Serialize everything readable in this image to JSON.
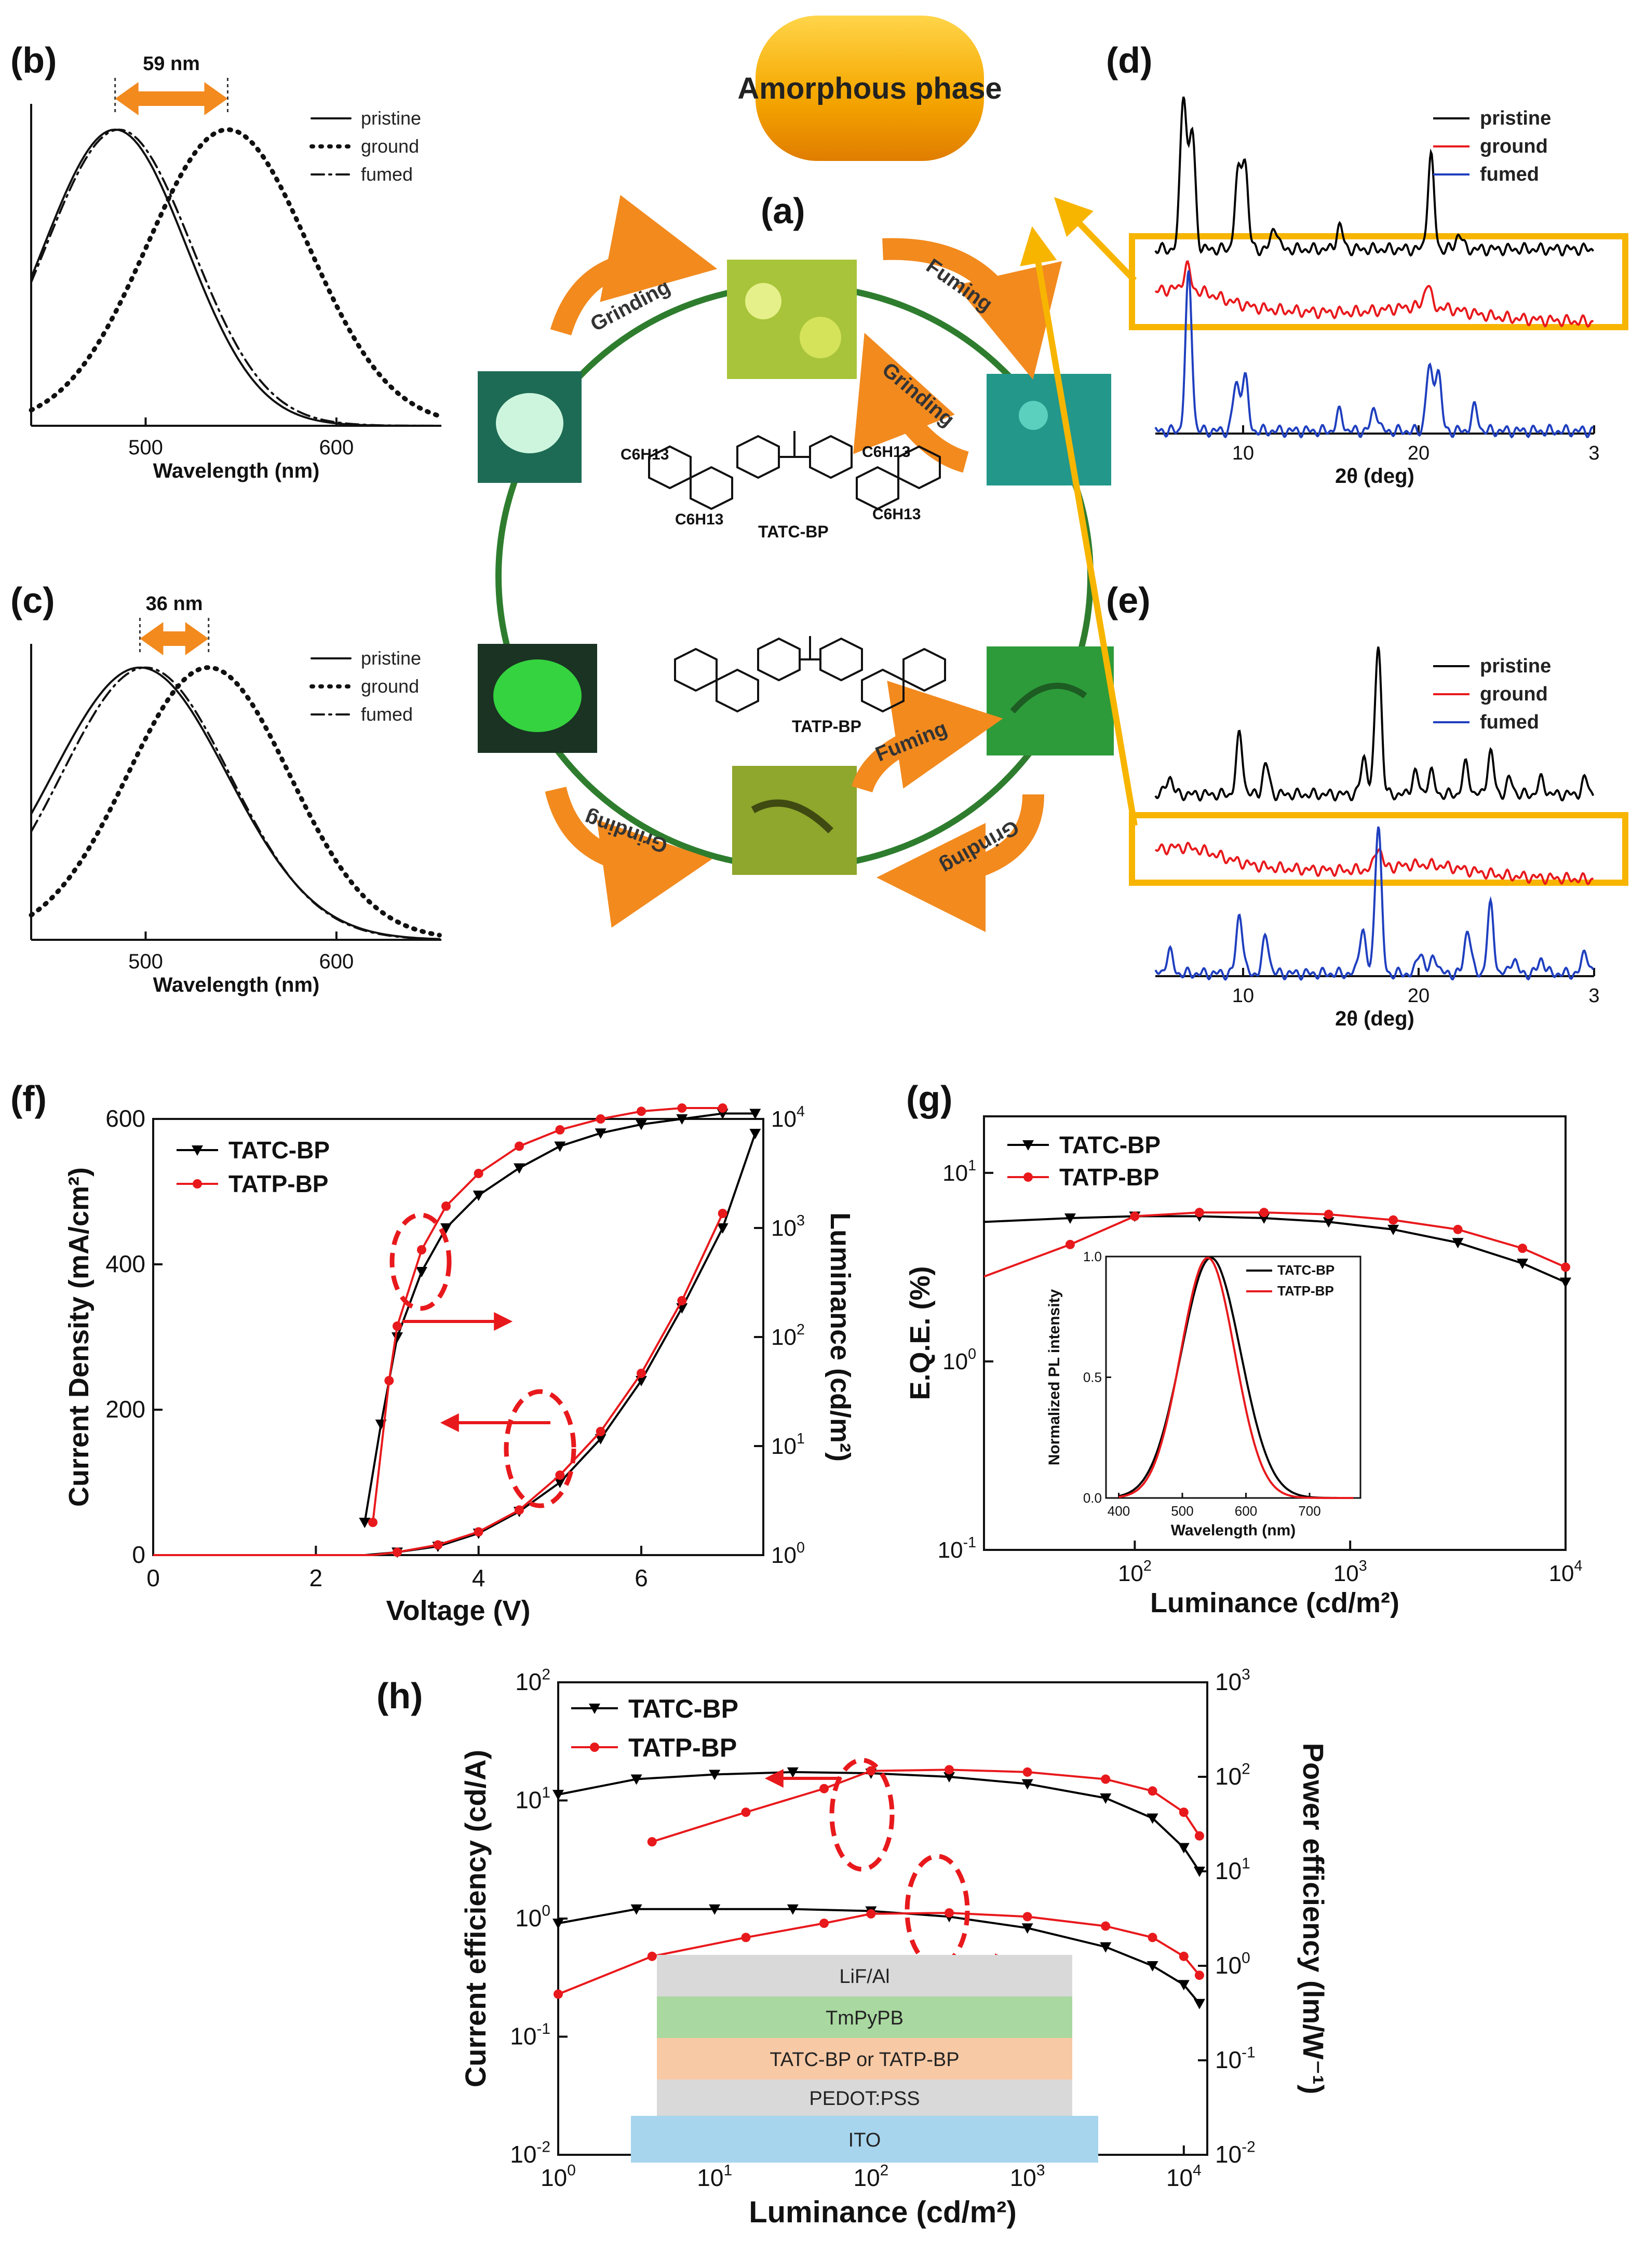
{
  "panels": {
    "b": "(b)",
    "c": "(c)",
    "d": "(d)",
    "e": "(e)",
    "f": "(f)",
    "g": "(g)",
    "h": "(h)",
    "a": "(a)"
  },
  "scheme": {
    "amorphous_label": "Amorphous phase",
    "arrows": [
      "Grinding",
      "Fuming",
      "Grinding",
      "Grinding",
      "Fuming",
      "Grinding"
    ],
    "mol_top": "TATC-BP",
    "mol_bottom": "TATP-BP",
    "sub_top_1": "C6H13",
    "sub_top_2": "C6H13",
    "sub_top_3": "C6H13",
    "sub_top_4": "C6H13"
  },
  "colors": {
    "black": "#000000",
    "red": "#e8191c",
    "blue": "#1f3fbf",
    "orange": "#f28a1e",
    "yellow": "#f7b500",
    "green": "#2e8b2e"
  },
  "chart_data": [
    {
      "id": "b",
      "type": "line",
      "title": "",
      "xlabel": "Wavelength (nm)",
      "ylabel": "",
      "xlim": [
        440,
        655
      ],
      "xticks": [
        500,
        600
      ],
      "annotation": "59 nm",
      "legend": [
        "pristine",
        "ground",
        "fumed"
      ],
      "series": [
        {
          "name": "pristine",
          "style": "solid",
          "peak": 484,
          "fwhm": 88
        },
        {
          "name": "ground",
          "style": "dotted",
          "peak": 543,
          "fwhm": 100
        },
        {
          "name": "fumed",
          "style": "dashdot",
          "peak": 486,
          "fwhm": 90
        }
      ]
    },
    {
      "id": "c",
      "type": "line",
      "title": "",
      "xlabel": "Wavelength (nm)",
      "ylabel": "",
      "xlim": [
        440,
        655
      ],
      "xticks": [
        500,
        600
      ],
      "annotation": "36 nm",
      "legend": [
        "pristine",
        "ground",
        "fumed"
      ],
      "series": [
        {
          "name": "pristine",
          "style": "solid",
          "peak": 497,
          "fwhm": 108
        },
        {
          "name": "ground",
          "style": "dotted",
          "peak": 533,
          "fwhm": 100
        },
        {
          "name": "fumed",
          "style": "dashdot",
          "peak": 500,
          "fwhm": 104
        }
      ]
    },
    {
      "id": "d",
      "type": "line",
      "title": "",
      "xlabel": "2θ (deg)",
      "ylabel": "",
      "xlim": [
        5,
        30
      ],
      "xticks": [
        10,
        20,
        "3"
      ],
      "legend": [
        "pristine",
        "ground",
        "fumed"
      ],
      "series": [
        {
          "name": "pristine",
          "peaks": [
            [
              6.6,
              1.0
            ],
            [
              7.1,
              0.75
            ],
            [
              9.7,
              0.45
            ],
            [
              10.1,
              0.55
            ],
            [
              11.8,
              0.15
            ],
            [
              15.5,
              0.15
            ],
            [
              20.7,
              0.6
            ],
            [
              22.3,
              0.1
            ]
          ]
        },
        {
          "name": "ground",
          "peaks": [
            [
              6.8,
              0.15
            ],
            [
              20.5,
              0.15
            ]
          ]
        },
        {
          "name": "fumed",
          "peaks": [
            [
              6.9,
              1.0
            ],
            [
              9.6,
              0.3
            ],
            [
              10.1,
              0.35
            ],
            [
              15.5,
              0.12
            ],
            [
              17.5,
              0.15
            ],
            [
              20.6,
              0.4
            ],
            [
              21.1,
              0.4
            ],
            [
              23.2,
              0.15
            ]
          ]
        }
      ]
    },
    {
      "id": "e",
      "type": "line",
      "title": "",
      "xlabel": "2θ (deg)",
      "ylabel": "",
      "xlim": [
        5,
        30
      ],
      "xticks": [
        10,
        20,
        "3"
      ],
      "legend": [
        "pristine",
        "ground",
        "fumed"
      ],
      "series": [
        {
          "name": "pristine",
          "peaks": [
            [
              5.8,
              0.12
            ],
            [
              9.8,
              0.4
            ],
            [
              11.3,
              0.2
            ],
            [
              16.9,
              0.25
            ],
            [
              17.7,
              1.0
            ],
            [
              19.8,
              0.15
            ],
            [
              20.7,
              0.15
            ],
            [
              22.7,
              0.2
            ],
            [
              24.1,
              0.28
            ],
            [
              25.2,
              0.1
            ],
            [
              27.0,
              0.1
            ],
            [
              29.5,
              0.1
            ]
          ]
        },
        {
          "name": "ground",
          "peaks": [
            [
              17.7,
              0.15
            ]
          ]
        },
        {
          "name": "fumed",
          "peaks": [
            [
              5.8,
              0.15
            ],
            [
              9.8,
              0.4
            ],
            [
              11.3,
              0.25
            ],
            [
              16.8,
              0.3
            ],
            [
              17.7,
              1.0
            ],
            [
              20.1,
              0.15
            ],
            [
              20.9,
              0.12
            ],
            [
              22.8,
              0.3
            ],
            [
              24.1,
              0.45
            ],
            [
              25.4,
              0.1
            ],
            [
              27.0,
              0.1
            ],
            [
              29.5,
              0.15
            ]
          ]
        }
      ]
    },
    {
      "id": "f",
      "type": "line",
      "title": "",
      "xlabel": "Voltage (V)",
      "ylabel": "Current Density (mA/cm²)",
      "ylabel_right": "Luminance (cd/m²)",
      "xlim": [
        0,
        7.5
      ],
      "ylim": [
        0,
        600
      ],
      "ylim_right_log": [
        0,
        4
      ],
      "xticks": [
        0,
        2,
        4,
        6
      ],
      "yticks": [
        0,
        200,
        400,
        600
      ],
      "yticks_right": [
        "10^0",
        "10^1",
        "10^2",
        "10^3",
        "10^4"
      ],
      "legend": [
        "TATC-BP",
        "TATP-BP"
      ],
      "series": [
        {
          "name": "TATC-BP",
          "axis": "left",
          "x": [
            0,
            1,
            2,
            2.6,
            3.0,
            3.5,
            4.0,
            4.5,
            5.0,
            5.5,
            6.0,
            6.5,
            7.0,
            7.4
          ],
          "y": [
            0,
            0,
            0,
            0,
            4,
            12,
            30,
            60,
            100,
            160,
            240,
            340,
            450,
            580
          ]
        },
        {
          "name": "TATP-BP",
          "axis": "left",
          "x": [
            0,
            1,
            2,
            2.7,
            3.0,
            3.5,
            4.0,
            4.5,
            5.0,
            5.5,
            6.0,
            6.5,
            7.0
          ],
          "y": [
            0,
            0,
            0,
            0,
            4,
            14,
            32,
            62,
            110,
            170,
            250,
            350,
            470
          ]
        },
        {
          "name": "TATC-BP",
          "axis": "right",
          "x": [
            2.6,
            2.8,
            3.0,
            3.3,
            3.6,
            4.0,
            4.5,
            5.0,
            5.5,
            6.0,
            6.5,
            7.0,
            7.4
          ],
          "y": [
            0.3,
            1.2,
            2.0,
            2.6,
            3.0,
            3.3,
            3.55,
            3.75,
            3.87,
            3.95,
            4.0,
            4.05,
            4.05
          ]
        },
        {
          "name": "TATP-BP",
          "axis": "right",
          "x": [
            2.7,
            2.9,
            3.0,
            3.3,
            3.6,
            4.0,
            4.5,
            5.0,
            5.5,
            6.0,
            6.5,
            7.0
          ],
          "y": [
            0.3,
            1.6,
            2.1,
            2.8,
            3.2,
            3.5,
            3.75,
            3.9,
            4.0,
            4.07,
            4.1,
            4.1
          ]
        }
      ]
    },
    {
      "id": "g",
      "type": "line",
      "title": "",
      "xlabel": "Luminance (cd/m²)",
      "ylabel": "E.Q.E. (%)",
      "xlim_log": [
        1.3,
        4
      ],
      "ylim_log": [
        -1,
        1.3
      ],
      "xticks": [
        "10^2",
        "10^3",
        "10^4"
      ],
      "yticks": [
        "10^-1",
        "10^0",
        "10^1"
      ],
      "legend": [
        "TATC-BP",
        "TATP-BP"
      ],
      "series": [
        {
          "name": "TATC-BP",
          "logx": [
            1.3,
            1.7,
            2.0,
            2.3,
            2.6,
            2.9,
            3.2,
            3.5,
            3.8,
            4.0
          ],
          "logy": [
            0.74,
            0.76,
            0.77,
            0.77,
            0.76,
            0.74,
            0.7,
            0.63,
            0.52,
            0.42
          ]
        },
        {
          "name": "TATP-BP",
          "logx": [
            1.3,
            1.7,
            2.0,
            2.3,
            2.6,
            2.9,
            3.2,
            3.5,
            3.8,
            4.0
          ],
          "logy": [
            0.45,
            0.62,
            0.77,
            0.79,
            0.79,
            0.78,
            0.75,
            0.7,
            0.6,
            0.5
          ]
        }
      ],
      "inset": {
        "xlabel": "Wavelength (nm)",
        "ylabel": "Normalized PL intensity",
        "xlim": [
          380,
          780
        ],
        "ylim": [
          0,
          1.0
        ],
        "xticks": [
          400,
          500,
          600,
          700
        ],
        "yticks": [
          "0.0",
          "0.5",
          "1.0"
        ],
        "legend": [
          "TATC-BP",
          "TATP-BP"
        ],
        "series": [
          {
            "name": "TATC-BP",
            "peak": 545,
            "fwhm": 110
          },
          {
            "name": "TATP-BP",
            "peak": 540,
            "fwhm": 100
          }
        ]
      }
    },
    {
      "id": "h",
      "type": "line",
      "title": "",
      "xlabel": "Luminance (cd/m²)",
      "ylabel": "Current efficiency (cd/A)",
      "ylabel_right": "Power efficiency (lm/W⁻¹)",
      "xlim_log": [
        0,
        4.15
      ],
      "ylim_log": [
        -2,
        2
      ],
      "ylim_right_log": [
        -2,
        3
      ],
      "xticks": [
        "10^0",
        "10^1",
        "10^2",
        "10^3",
        "10^4"
      ],
      "yticks": [
        "10^-2",
        "10^-1",
        "10^0",
        "10^1",
        "10^2"
      ],
      "yticks_right": [
        "10^-2",
        "10^-1",
        "10^0",
        "10^1",
        "10^2",
        "10^3"
      ],
      "legend": [
        "TATC-BP",
        "TATP-BP"
      ],
      "series": [
        {
          "name": "TATC-BP CE",
          "logx": [
            0,
            0.5,
            1.0,
            1.5,
            2.0,
            2.5,
            3.0,
            3.5,
            3.8,
            4.0,
            4.1
          ],
          "logy": [
            1.05,
            1.18,
            1.22,
            1.24,
            1.23,
            1.2,
            1.14,
            1.02,
            0.85,
            0.6,
            0.4
          ]
        },
        {
          "name": "TATP-BP CE",
          "logx": [
            0.6,
            1.2,
            1.7,
            2.0,
            2.5,
            3.0,
            3.5,
            3.8,
            4.0,
            4.1
          ],
          "logy": [
            0.65,
            0.9,
            1.1,
            1.25,
            1.26,
            1.24,
            1.18,
            1.08,
            0.9,
            0.7
          ]
        },
        {
          "name": "TATC-BP PE",
          "logx": [
            0,
            0.5,
            1.0,
            1.5,
            2.0,
            2.5,
            3.0,
            3.5,
            3.8,
            4.0,
            4.1
          ],
          "logy": [
            0.45,
            0.6,
            0.6,
            0.6,
            0.58,
            0.52,
            0.4,
            0.2,
            0.0,
            -0.2,
            -0.4
          ]
        },
        {
          "name": "TATP-BP PE",
          "logx": [
            0,
            0.6,
            1.2,
            1.7,
            2.0,
            2.5,
            3.0,
            3.5,
            3.8,
            4.0,
            4.1
          ],
          "logy": [
            -0.3,
            0.1,
            0.3,
            0.45,
            0.55,
            0.56,
            0.52,
            0.42,
            0.3,
            0.1,
            -0.1
          ]
        }
      ],
      "device_stack": [
        "LiF/Al",
        "TmPyPB",
        "TATC-BP or TATP-BP",
        "PEDOT:PSS",
        "ITO"
      ]
    }
  ]
}
